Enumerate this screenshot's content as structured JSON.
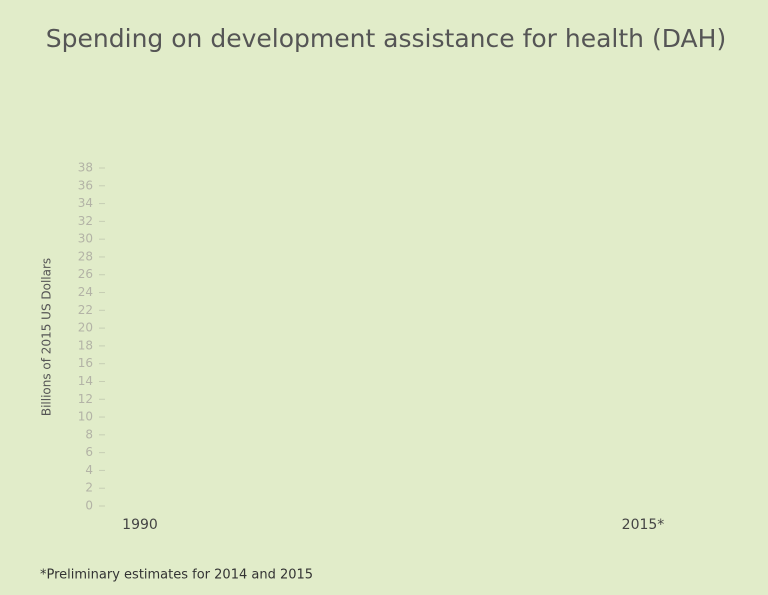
{
  "chart_data": {
    "type": "line",
    "title": "Spending on development assistance for health (DAH)",
    "y_label": "Billions of 2015 US Dollars",
    "footnote": "*Preliminary estimates for 2014 and 2015",
    "xlim": [
      1990,
      2015
    ],
    "xticks": [
      {
        "value": 1990,
        "label": "1990"
      },
      {
        "value": 2015,
        "label": "2015*"
      }
    ],
    "ylim": [
      0,
      38
    ],
    "yticks": [
      0,
      2,
      4,
      6,
      8,
      10,
      12,
      14,
      16,
      18,
      20,
      22,
      24,
      26,
      28,
      30,
      32,
      34,
      36,
      38
    ],
    "series": []
  }
}
